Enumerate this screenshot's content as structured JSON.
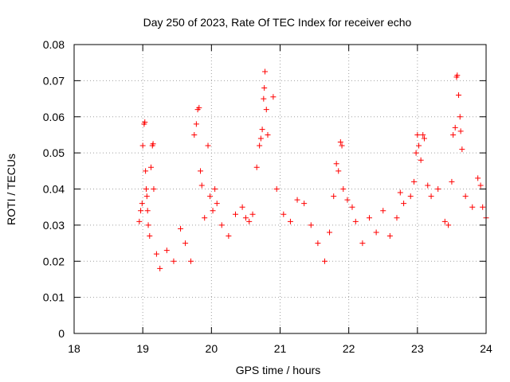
{
  "chart_data": {
    "type": "scatter",
    "title": "Day 250 of 2023, Rate Of TEC Index for receiver echo",
    "xlabel": "GPS time / hours",
    "ylabel": "ROTI / TECUs",
    "xlim": [
      18,
      24
    ],
    "ylim": [
      0,
      0.08
    ],
    "xticks": [
      "18",
      "19",
      "20",
      "21",
      "22",
      "23",
      "24"
    ],
    "yticks": [
      "0",
      "0.01",
      "0.02",
      "0.03",
      "0.04",
      "0.05",
      "0.06",
      "0.07",
      "0.08"
    ],
    "grid": true,
    "legend": "none",
    "marker": "plus",
    "color": "#ff0000",
    "series": [
      {
        "points": [
          [
            18.95,
            0.031
          ],
          [
            18.97,
            0.034
          ],
          [
            18.99,
            0.036
          ],
          [
            19.0,
            0.052
          ],
          [
            19.02,
            0.058
          ],
          [
            19.03,
            0.0585
          ],
          [
            19.04,
            0.045
          ],
          [
            19.05,
            0.04
          ],
          [
            19.06,
            0.038
          ],
          [
            19.07,
            0.034
          ],
          [
            19.08,
            0.03
          ],
          [
            19.1,
            0.027
          ],
          [
            19.12,
            0.046
          ],
          [
            19.14,
            0.052
          ],
          [
            19.15,
            0.0525
          ],
          [
            19.16,
            0.04
          ],
          [
            19.2,
            0.022
          ],
          [
            19.25,
            0.018
          ],
          [
            19.35,
            0.023
          ],
          [
            19.45,
            0.02
          ],
          [
            19.55,
            0.029
          ],
          [
            19.62,
            0.025
          ],
          [
            19.7,
            0.02
          ],
          [
            19.75,
            0.055
          ],
          [
            19.78,
            0.058
          ],
          [
            19.8,
            0.062
          ],
          [
            19.82,
            0.0625
          ],
          [
            19.84,
            0.045
          ],
          [
            19.86,
            0.041
          ],
          [
            19.9,
            0.032
          ],
          [
            19.95,
            0.052
          ],
          [
            19.98,
            0.038
          ],
          [
            20.02,
            0.034
          ],
          [
            20.05,
            0.04
          ],
          [
            20.08,
            0.036
          ],
          [
            20.15,
            0.03
          ],
          [
            20.25,
            0.027
          ],
          [
            20.35,
            0.033
          ],
          [
            20.45,
            0.035
          ],
          [
            20.5,
            0.032
          ],
          [
            20.55,
            0.031
          ],
          [
            20.6,
            0.033
          ],
          [
            20.66,
            0.046
          ],
          [
            20.7,
            0.052
          ],
          [
            20.72,
            0.054
          ],
          [
            20.74,
            0.0565
          ],
          [
            20.76,
            0.065
          ],
          [
            20.77,
            0.068
          ],
          [
            20.78,
            0.0725
          ],
          [
            20.8,
            0.062
          ],
          [
            20.82,
            0.055
          ],
          [
            20.9,
            0.0655
          ],
          [
            20.95,
            0.04
          ],
          [
            21.05,
            0.033
          ],
          [
            21.15,
            0.031
          ],
          [
            21.25,
            0.037
          ],
          [
            21.35,
            0.036
          ],
          [
            21.45,
            0.03
          ],
          [
            21.55,
            0.025
          ],
          [
            21.65,
            0.02
          ],
          [
            21.72,
            0.028
          ],
          [
            21.78,
            0.038
          ],
          [
            21.82,
            0.047
          ],
          [
            21.85,
            0.045
          ],
          [
            21.88,
            0.053
          ],
          [
            21.9,
            0.052
          ],
          [
            21.92,
            0.04
          ],
          [
            21.98,
            0.037
          ],
          [
            22.05,
            0.035
          ],
          [
            22.1,
            0.031
          ],
          [
            22.2,
            0.025
          ],
          [
            22.3,
            0.032
          ],
          [
            22.4,
            0.028
          ],
          [
            22.5,
            0.034
          ],
          [
            22.6,
            0.027
          ],
          [
            22.7,
            0.032
          ],
          [
            22.75,
            0.039
          ],
          [
            22.8,
            0.036
          ],
          [
            22.9,
            0.038
          ],
          [
            22.95,
            0.042
          ],
          [
            22.98,
            0.05
          ],
          [
            23.0,
            0.055
          ],
          [
            23.02,
            0.052
          ],
          [
            23.05,
            0.048
          ],
          [
            23.08,
            0.055
          ],
          [
            23.1,
            0.054
          ],
          [
            23.15,
            0.041
          ],
          [
            23.2,
            0.038
          ],
          [
            23.3,
            0.04
          ],
          [
            23.4,
            0.031
          ],
          [
            23.45,
            0.03
          ],
          [
            23.5,
            0.042
          ],
          [
            23.52,
            0.055
          ],
          [
            23.55,
            0.057
          ],
          [
            23.57,
            0.071
          ],
          [
            23.58,
            0.0715
          ],
          [
            23.6,
            0.066
          ],
          [
            23.62,
            0.06
          ],
          [
            23.63,
            0.056
          ],
          [
            23.65,
            0.051
          ],
          [
            23.7,
            0.038
          ],
          [
            23.8,
            0.035
          ],
          [
            23.88,
            0.043
          ],
          [
            23.92,
            0.041
          ],
          [
            23.95,
            0.035
          ],
          [
            24.0,
            0.032
          ]
        ]
      }
    ]
  }
}
